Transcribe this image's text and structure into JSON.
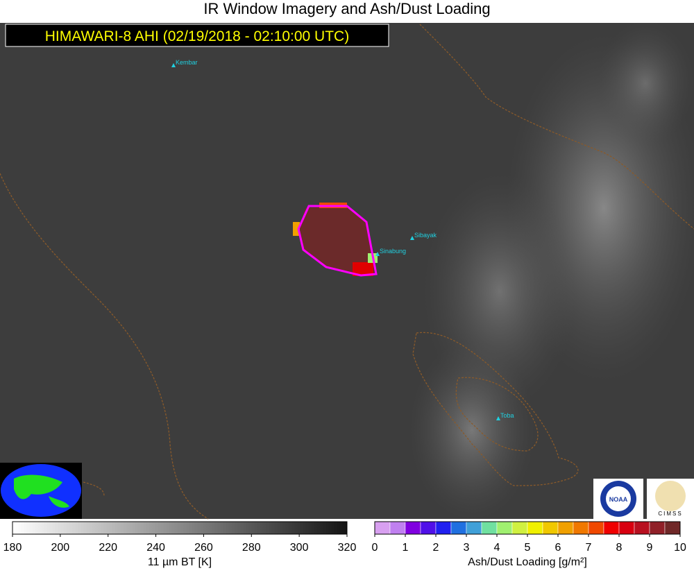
{
  "map": {
    "title": "IR Window Imagery and Ash/Dust Loading",
    "subtitle": "HIMAWARI-8 AHI (02/19/2018 - 02:10:00 UTC)",
    "volcanoes": [
      "Kembar",
      "Sibayak",
      "Sinabung",
      "Toba"
    ],
    "logos": [
      "NOAA",
      "CIMSS"
    ]
  },
  "bt_colorbar": {
    "label": "11 µm BT [K]",
    "range": [
      180,
      320
    ],
    "ticks": [
      180,
      200,
      220,
      240,
      260,
      280,
      300,
      320
    ],
    "colors": [
      "#ffffff",
      "#141414"
    ]
  },
  "ash_colorbar": {
    "label": "Ash/Dust Loading [g/m²]",
    "range": [
      0,
      10
    ],
    "ticks": [
      0,
      1,
      2,
      3,
      4,
      5,
      6,
      7,
      8,
      9,
      10
    ],
    "colors": [
      "#d8a0f0",
      "#c080f0",
      "#8000e0",
      "#5010e8",
      "#2020f0",
      "#2070e0",
      "#40a0d8",
      "#70e0a0",
      "#a0f070",
      "#d0f040",
      "#f0f000",
      "#f0c800",
      "#f0a000",
      "#f07800",
      "#f04800",
      "#f00000",
      "#d80010",
      "#b81020",
      "#902028",
      "#702828"
    ]
  }
}
